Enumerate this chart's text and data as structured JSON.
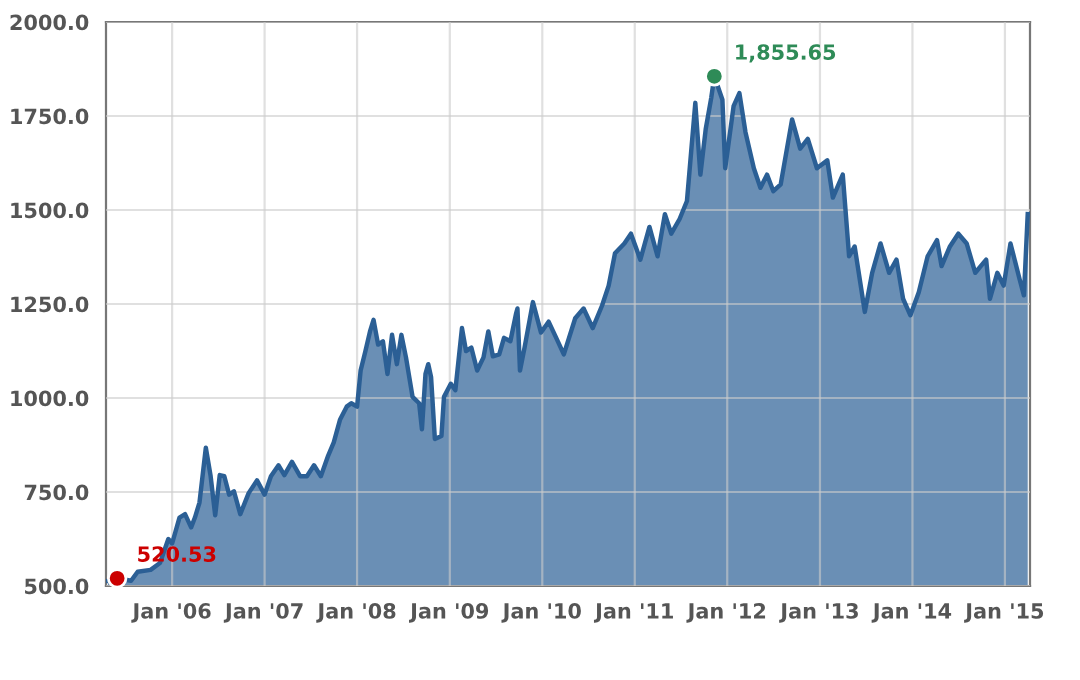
{
  "chart_data": {
    "type": "area",
    "x": [
      "2005-04-23",
      "2005-05-29",
      "2005-07-23",
      "2005-08-18",
      "2005-10-08",
      "2005-11-14",
      "2005-12-17",
      "2006-01-01",
      "2006-01-30",
      "2006-02-21",
      "2006-03-17",
      "2006-04-01",
      "2006-04-19",
      "2006-05-14",
      "2006-06-02",
      "2006-06-20",
      "2006-07-08",
      "2006-07-26",
      "2006-08-14",
      "2006-09-02",
      "2006-09-27",
      "2006-10-30",
      "2006-12-02",
      "2007-01-01",
      "2007-01-26",
      "2007-02-25",
      "2007-03-20",
      "2007-04-19",
      "2007-05-21",
      "2007-06-17",
      "2007-07-15",
      "2007-08-11",
      "2007-09-09",
      "2007-10-01",
      "2007-10-26",
      "2007-11-21",
      "2007-12-09",
      "2008-01-01",
      "2008-01-15",
      "2008-02-03",
      "2008-02-21",
      "2008-03-06",
      "2008-03-24",
      "2008-04-12",
      "2008-04-30",
      "2008-05-18",
      "2008-06-06",
      "2008-06-24",
      "2008-07-12",
      "2008-08-07",
      "2008-09-02",
      "2008-09-13",
      "2008-09-27",
      "2008-10-08",
      "2008-10-19",
      "2008-11-03",
      "2008-11-29",
      "2008-12-09",
      "2009-01-05",
      "2009-01-23",
      "2009-02-18",
      "2009-03-06",
      "2009-03-27",
      "2009-04-19",
      "2009-05-14",
      "2009-06-02",
      "2009-06-20",
      "2009-07-15",
      "2009-08-03",
      "2009-08-28",
      "2009-09-20",
      "2009-09-25",
      "2009-10-05",
      "2009-10-23",
      "2009-11-25",
      "2009-12-27",
      "2010-01-26",
      "2010-02-25",
      "2010-03-27",
      "2010-05-11",
      "2010-06-13",
      "2010-07-19",
      "2010-08-25",
      "2010-09-20",
      "2010-10-15",
      "2010-11-21",
      "2010-12-17",
      "2011-01-23",
      "2011-02-28",
      "2011-04-01",
      "2011-04-30",
      "2011-05-25",
      "2011-06-27",
      "2011-07-26",
      "2011-08-28",
      "2011-09-17",
      "2011-10-08",
      "2011-10-30",
      "2011-11-11",
      "2011-12-13",
      "2011-12-24",
      "2012-01-26",
      "2012-02-18",
      "2012-03-13",
      "2012-04-15",
      "2012-05-11",
      "2012-06-06",
      "2012-07-01",
      "2012-07-30",
      "2012-09-13",
      "2012-10-15",
      "2012-11-14",
      "2012-12-20",
      "2013-01-30",
      "2013-02-21",
      "2013-04-01",
      "2013-04-15",
      "2013-04-26",
      "2013-05-18",
      "2013-06-27",
      "2013-07-26",
      "2013-08-28",
      "2013-10-01",
      "2013-10-30",
      "2013-11-25",
      "2013-12-24",
      "2014-01-26",
      "2014-03-02",
      "2014-04-08",
      "2014-04-26",
      "2014-05-29",
      "2014-07-01",
      "2014-08-03",
      "2014-09-06",
      "2014-10-19",
      "2014-11-03",
      "2014-12-02",
      "2014-12-27",
      "2015-01-23",
      "2015-02-28",
      "2015-03-17",
      "2015-04-01"
    ],
    "series": [
      {
        "color": "#2b5f95",
        "values": [
          514,
          520.53,
          514,
          538,
          543,
          561,
          625,
          613,
          682,
          691,
          656,
          682,
          722,
          868,
          792,
          688,
          795,
          792,
          743,
          752,
          691,
          747,
          781,
          743,
          792,
          821,
          795,
          830,
          792,
          792,
          821,
          792,
          847,
          882,
          943,
          977,
          986,
          977,
          1073,
          1125,
          1177,
          1208,
          1142,
          1151,
          1064,
          1168,
          1090,
          1168,
          1108,
          1003,
          986,
          917,
          1064,
          1090,
          1056,
          891,
          899,
          1003,
          1038,
          1021,
          1186,
          1125,
          1134,
          1073,
          1108,
          1177,
          1111,
          1116,
          1160,
          1151,
          1226,
          1238,
          1073,
          1134,
          1255,
          1174,
          1203,
          1160,
          1116,
          1212,
          1238,
          1186,
          1246,
          1299,
          1385,
          1411,
          1437,
          1368,
          1455,
          1377,
          1489,
          1437,
          1476,
          1524,
          1785,
          1594,
          1715,
          1799,
          1855.65,
          1793,
          1611,
          1776,
          1811,
          1707,
          1611,
          1559,
          1594,
          1550,
          1568,
          1741,
          1663,
          1689,
          1611,
          1632,
          1533,
          1594,
          1472,
          1377,
          1403,
          1229,
          1333,
          1411,
          1333,
          1368,
          1264,
          1220,
          1281,
          1377,
          1420,
          1351,
          1403,
          1437,
          1411,
          1333,
          1368,
          1264,
          1333,
          1299,
          1411,
          1316,
          1273,
          1489
        ]
      },
      {
        "type": "scatter",
        "x": [
          "2005-05-29",
          "2011-11-11"
        ],
        "values": [
          520.53,
          1855.65
        ],
        "colors": [
          "#cc0000",
          "#2e8b57"
        ]
      }
    ],
    "annotations": [
      {
        "text": "520.53",
        "x": "2005-05-29",
        "y": 520.53
      },
      {
        "text": "1,855.65",
        "x": "2011-11-11",
        "y": 1855.65
      }
    ],
    "xlim": [
      "2005-04-15",
      "2015-04-10"
    ],
    "xticks": [
      {
        "value": "2006-01-01",
        "label": "Jan '06"
      },
      {
        "value": "2007-01-01",
        "label": "Jan '07"
      },
      {
        "value": "2008-01-01",
        "label": "Jan '08"
      },
      {
        "value": "2009-01-01",
        "label": "Jan '09"
      },
      {
        "value": "2010-01-01",
        "label": "Jan '10"
      },
      {
        "value": "2011-01-01",
        "label": "Jan '11"
      },
      {
        "value": "2012-01-01",
        "label": "Jan '12"
      },
      {
        "value": "2013-01-01",
        "label": "Jan '13"
      },
      {
        "value": "2014-01-01",
        "label": "Jan '14"
      },
      {
        "value": "2015-01-01",
        "label": "Jan '15"
      }
    ],
    "ylim": [
      500,
      2000
    ],
    "yticks": [
      {
        "value": 500,
        "label": "500.0"
      },
      {
        "value": 750,
        "label": "750.0"
      },
      {
        "value": 1000,
        "label": "1000.0"
      },
      {
        "value": 1250,
        "label": "1250.0"
      },
      {
        "value": 1500,
        "label": "1500.0"
      },
      {
        "value": 1750,
        "label": "1750.0"
      },
      {
        "value": 2000,
        "label": "2000.0"
      }
    ],
    "grid": true,
    "legend": false
  }
}
